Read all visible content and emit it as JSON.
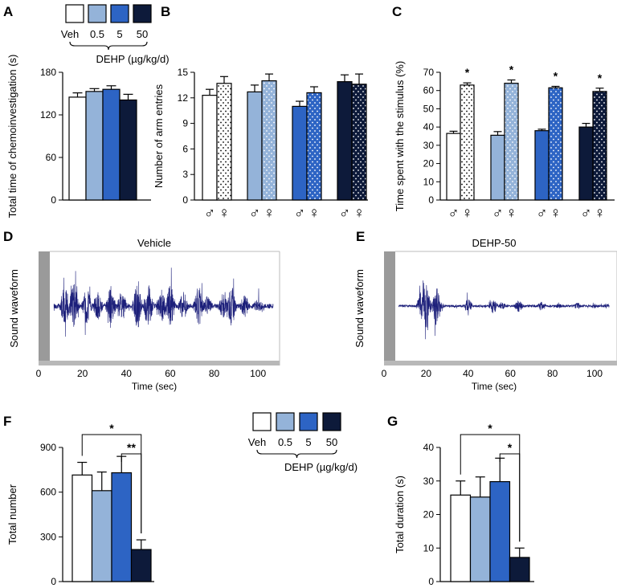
{
  "colors": {
    "veh": "#ffffff",
    "d05": "#94b3d9",
    "d5": "#2d64c4",
    "d50": "#0d1a3a",
    "wave": "#1c1f7a",
    "axis": "#000000"
  },
  "legend": {
    "labels": [
      "Veh",
      "0.5",
      "5",
      "50"
    ],
    "dehp_label": "DEHP (µg/kg/d)"
  },
  "sex_symbols": {
    "male": "♂",
    "female": "♀"
  },
  "chart_data": [
    {
      "id": "A",
      "type": "bar",
      "panel_label": "A",
      "ylabel": "Total time of chemoinvestigation (s)",
      "ylim": [
        0,
        180
      ],
      "yticks": [
        0,
        60,
        120,
        180
      ],
      "categories": [
        "Veh",
        "0.5",
        "5",
        "50"
      ],
      "values": [
        145,
        153,
        156,
        141
      ],
      "errors": [
        6,
        4,
        5,
        8
      ]
    },
    {
      "id": "B",
      "type": "bar",
      "panel_label": "B",
      "ylabel": "Number of arm entries",
      "ylim": [
        0,
        15
      ],
      "yticks": [
        0,
        3,
        6,
        9,
        12,
        15
      ],
      "groups": [
        "Veh",
        "0.5",
        "5",
        "50"
      ],
      "series": [
        {
          "name": "male",
          "values": [
            12.3,
            12.7,
            11.0,
            13.9
          ],
          "errors": [
            0.7,
            0.8,
            0.6,
            0.8
          ]
        },
        {
          "name": "female",
          "values": [
            13.7,
            14.0,
            12.6,
            13.6
          ],
          "errors": [
            0.8,
            0.8,
            0.7,
            1.2
          ]
        }
      ]
    },
    {
      "id": "C",
      "type": "bar",
      "panel_label": "C",
      "ylabel": "Time spent with the stimulus (%)",
      "ylim": [
        0,
        70
      ],
      "yticks": [
        0,
        10,
        20,
        30,
        40,
        50,
        60,
        70
      ],
      "groups": [
        "Veh",
        "0.5",
        "5",
        "50"
      ],
      "series": [
        {
          "name": "male",
          "values": [
            36.5,
            35.5,
            38.0,
            40.0
          ],
          "errors": [
            1.2,
            2.0,
            0.8,
            2.0
          ]
        },
        {
          "name": "female",
          "values": [
            63.0,
            64.0,
            61.5,
            59.5
          ],
          "errors": [
            1.2,
            1.8,
            0.8,
            1.8
          ]
        }
      ],
      "significance": [
        "*",
        "*",
        "*",
        "*"
      ]
    },
    {
      "id": "D",
      "type": "line",
      "panel_label": "D",
      "title": "Vehicle",
      "xlabel": "Time (sec)",
      "ylabel": "Sound waveform",
      "xlim": [
        0,
        108
      ],
      "xticks": [
        0,
        20,
        40,
        60,
        80,
        100
      ],
      "bursts": [
        {
          "t": 12,
          "a": 0.85
        },
        {
          "t": 16,
          "a": 0.95
        },
        {
          "t": 22,
          "a": 0.75
        },
        {
          "t": 27,
          "a": 0.6
        },
        {
          "t": 33,
          "a": 0.85
        },
        {
          "t": 38,
          "a": 0.65
        },
        {
          "t": 45,
          "a": 0.9
        },
        {
          "t": 50,
          "a": 0.95
        },
        {
          "t": 56,
          "a": 0.7
        },
        {
          "t": 60,
          "a": 0.9
        },
        {
          "t": 66,
          "a": 0.6
        },
        {
          "t": 73,
          "a": 0.85
        },
        {
          "t": 77,
          "a": 0.45
        },
        {
          "t": 84,
          "a": 0.55
        },
        {
          "t": 88,
          "a": 0.85
        },
        {
          "t": 94,
          "a": 0.5
        },
        {
          "t": 100,
          "a": 0.35
        }
      ],
      "noise": 0.1
    },
    {
      "id": "E",
      "type": "line",
      "panel_label": "E",
      "title": "DEHP-50",
      "xlabel": "Time (sec)",
      "ylabel": "Sound waveform",
      "xlim": [
        0,
        108
      ],
      "xticks": [
        0,
        20,
        40,
        60,
        80,
        100
      ],
      "bursts": [
        {
          "t": 18,
          "a": 0.65
        },
        {
          "t": 20,
          "a": 0.95
        },
        {
          "t": 25,
          "a": 0.85
        },
        {
          "t": 40,
          "a": 0.3
        },
        {
          "t": 52,
          "a": 0.3
        },
        {
          "t": 56,
          "a": 0.15
        },
        {
          "t": 64,
          "a": 0.25
        },
        {
          "t": 75,
          "a": 0.2
        },
        {
          "t": 83,
          "a": 0.1
        },
        {
          "t": 92,
          "a": 0.15
        },
        {
          "t": 100,
          "a": 0.1
        },
        {
          "t": 106,
          "a": 0.1
        }
      ],
      "noise": 0.05
    },
    {
      "id": "F",
      "type": "bar",
      "panel_label": "F",
      "ylabel": "Total number",
      "ylim": [
        0,
        900
      ],
      "yticks": [
        0,
        300,
        600,
        900
      ],
      "categories": [
        "Veh",
        "0.5",
        "5",
        "50"
      ],
      "values": [
        715,
        610,
        730,
        215
      ],
      "errors": [
        85,
        125,
        110,
        65
      ],
      "brackets": [
        {
          "from": 0,
          "to": 3,
          "label": "*"
        },
        {
          "from": 2,
          "to": 3,
          "label": "**"
        }
      ]
    },
    {
      "id": "G",
      "type": "bar",
      "panel_label": "G",
      "ylabel": "Total duration (s)",
      "ylim": [
        0,
        40
      ],
      "yticks": [
        0,
        10,
        20,
        30,
        40
      ],
      "categories": [
        "Veh",
        "0.5",
        "5",
        "50"
      ],
      "values": [
        25.8,
        25.2,
        29.8,
        7.2
      ],
      "errors": [
        4.2,
        6.0,
        7.0,
        2.8
      ],
      "brackets": [
        {
          "from": 0,
          "to": 3,
          "label": "*"
        },
        {
          "from": 2,
          "to": 3,
          "label": "*"
        }
      ]
    }
  ]
}
